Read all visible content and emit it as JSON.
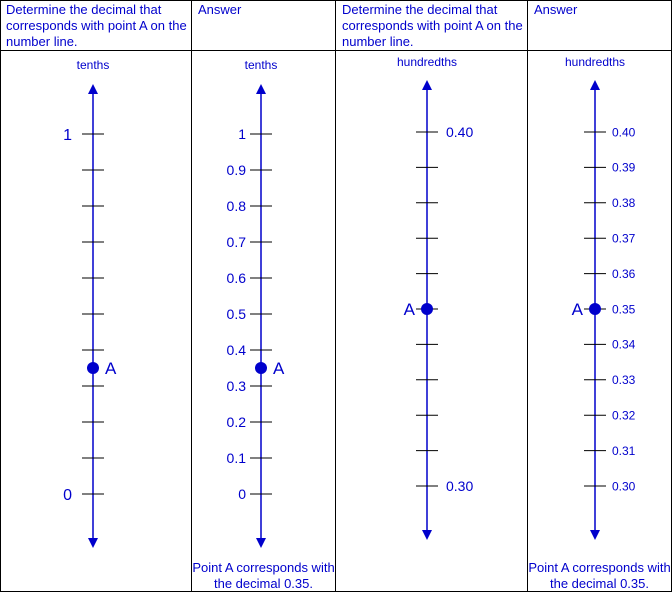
{
  "columns": [
    {
      "header": "Determine the decimal that corresponds with point A on the number line.",
      "unit_label": "tenths",
      "labels": [
        "1",
        "0"
      ],
      "point_label": "A",
      "point_value": 0.35
    },
    {
      "header": "Answer",
      "unit_label": "tenths",
      "labels": [
        "1",
        "0.9",
        "0.8",
        "0.7",
        "0.6",
        "0.5",
        "0.4",
        "0.3",
        "0.2",
        "0.1",
        "0"
      ],
      "point_label": "A",
      "point_value": 0.35,
      "footer": "Point A corresponds with the decimal 0.35."
    },
    {
      "header": "Determine the decimal that corresponds with point A on the number line.",
      "unit_label": "hundredths",
      "labels": [
        "0.40",
        "0.30"
      ],
      "point_label": "A",
      "point_value": 0.35
    },
    {
      "header": "Answer",
      "unit_label": "hundredths",
      "labels": [
        "0.40",
        "0.39",
        "0.38",
        "0.37",
        "0.36",
        "0.35",
        "0.34",
        "0.33",
        "0.32",
        "0.31",
        "0.30"
      ],
      "point_label": "A",
      "point_value": 0.35,
      "footer": "Point A corresponds with the decimal 0.35."
    }
  ],
  "colors": {
    "line": "#0000cc",
    "border": "#000000"
  }
}
